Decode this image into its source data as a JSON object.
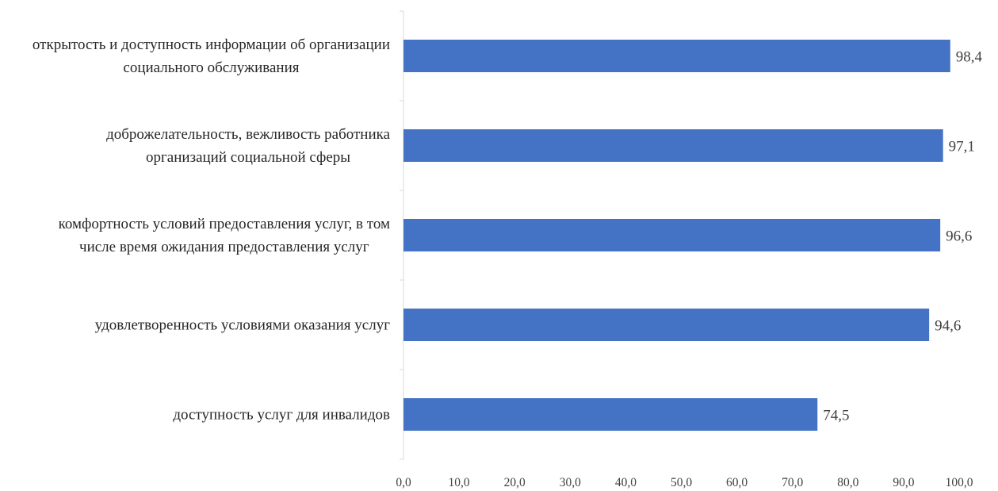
{
  "chart_data": {
    "type": "bar",
    "orientation": "horizontal",
    "categories": [
      [
        "открытость и доступность информации об организации",
        "социального обслуживания"
      ],
      [
        "доброжелательность, вежливость работника",
        "организаций социальной сферы"
      ],
      [
        "комфортность условий предоставления услуг, в том",
        "числе время ожидания предоставления услуг"
      ],
      [
        "удовлетворенность условиями оказания услуг"
      ],
      [
        "доступность услуг для инвалидов"
      ]
    ],
    "values": [
      98.4,
      97.1,
      96.6,
      94.6,
      74.5
    ],
    "value_labels": [
      "98,4",
      "97,1",
      "96,6",
      "94,6",
      "74,5"
    ],
    "xlim": [
      0,
      100
    ],
    "x_ticks": [
      "0,0",
      "10,0",
      "20,0",
      "30,0",
      "40,0",
      "50,0",
      "60,0",
      "70,0",
      "80,0",
      "90,0",
      "100,0"
    ],
    "grid": false,
    "legend": "none",
    "bar_color": "#4472c4",
    "title": "",
    "xlabel": "",
    "ylabel": ""
  }
}
